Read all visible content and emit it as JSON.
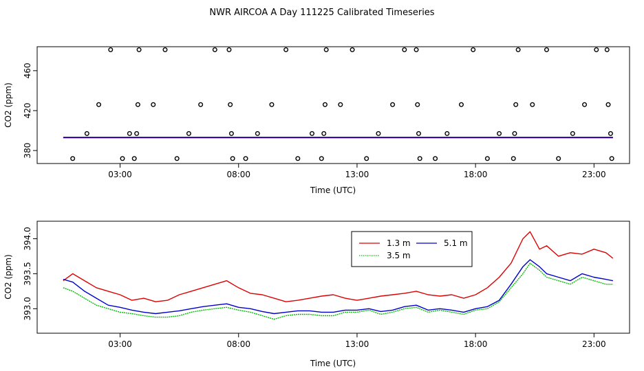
{
  "title": "NWR AIRCOA A  Day 111225  Calibrated Timeseries",
  "colors": {
    "s13": "#dd0000",
    "s35": "#00bb00",
    "s51": "#0000cc",
    "flask": "#000000"
  },
  "chart_data": [
    {
      "type": "scatter",
      "name": "top-panel",
      "xlabel": "Time (UTC)",
      "ylabel": "CO2 (ppm)",
      "xlim": [
        0,
        25
      ],
      "ylim": [
        367,
        484
      ],
      "xticks": [
        {
          "v": 3.5,
          "label": "03:00"
        },
        {
          "v": 8.5,
          "label": "08:00"
        },
        {
          "v": 13.5,
          "label": "13:00"
        },
        {
          "v": 18.5,
          "label": "18:00"
        },
        {
          "v": 23.5,
          "label": "23:00"
        }
      ],
      "yticks": [
        {
          "v": 380,
          "label": "380"
        },
        {
          "v": 420,
          "label": "420"
        },
        {
          "v": 460,
          "label": "460"
        }
      ],
      "baseline": {
        "x": [
          1.1,
          24.3
        ],
        "y": 393.2
      },
      "points": [
        [
          1.5,
          372
        ],
        [
          2.1,
          397
        ],
        [
          2.6,
          426
        ],
        [
          3.1,
          481
        ],
        [
          3.6,
          372
        ],
        [
          3.9,
          397
        ],
        [
          4.1,
          372
        ],
        [
          4.2,
          397
        ],
        [
          4.25,
          426
        ],
        [
          4.3,
          481
        ],
        [
          4.9,
          426
        ],
        [
          5.4,
          481
        ],
        [
          5.9,
          372
        ],
        [
          6.4,
          397
        ],
        [
          6.9,
          426
        ],
        [
          7.5,
          481
        ],
        [
          8.1,
          481
        ],
        [
          8.15,
          426
        ],
        [
          8.2,
          397
        ],
        [
          8.25,
          372
        ],
        [
          8.8,
          372
        ],
        [
          9.3,
          397
        ],
        [
          9.9,
          426
        ],
        [
          10.5,
          481
        ],
        [
          11.0,
          372
        ],
        [
          11.6,
          397
        ],
        [
          12.0,
          372
        ],
        [
          12.1,
          397
        ],
        [
          12.15,
          426
        ],
        [
          12.2,
          481
        ],
        [
          12.8,
          426
        ],
        [
          13.3,
          481
        ],
        [
          13.9,
          372
        ],
        [
          14.4,
          397
        ],
        [
          15.0,
          426
        ],
        [
          15.5,
          481
        ],
        [
          16.0,
          481
        ],
        [
          16.05,
          426
        ],
        [
          16.1,
          397
        ],
        [
          16.15,
          372
        ],
        [
          16.8,
          372
        ],
        [
          17.3,
          397
        ],
        [
          17.9,
          426
        ],
        [
          18.4,
          481
        ],
        [
          19.0,
          372
        ],
        [
          19.5,
          397
        ],
        [
          20.1,
          372
        ],
        [
          20.15,
          397
        ],
        [
          20.2,
          426
        ],
        [
          20.3,
          481
        ],
        [
          20.9,
          426
        ],
        [
          21.5,
          481
        ],
        [
          22.0,
          372
        ],
        [
          22.6,
          397
        ],
        [
          23.1,
          426
        ],
        [
          23.6,
          481
        ],
        [
          24.05,
          481
        ],
        [
          24.1,
          426
        ],
        [
          24.2,
          397
        ],
        [
          24.25,
          372
        ]
      ]
    },
    {
      "type": "line",
      "name": "bottom-panel",
      "xlabel": "Time (UTC)",
      "ylabel": "CO2 (ppm)",
      "xlim": [
        0,
        25
      ],
      "ylim": [
        392.65,
        394.25
      ],
      "xticks": [
        {
          "v": 3.5,
          "label": "03:00"
        },
        {
          "v": 8.5,
          "label": "08:00"
        },
        {
          "v": 13.5,
          "label": "13:00"
        },
        {
          "v": 18.5,
          "label": "18:00"
        },
        {
          "v": 23.5,
          "label": "23:00"
        }
      ],
      "yticks": [
        {
          "v": 393.0,
          "label": "393.0"
        },
        {
          "v": 393.5,
          "label": "393.5"
        },
        {
          "v": 394.0,
          "label": "394.0"
        }
      ],
      "legend": {
        "position": "top-center",
        "entries": [
          {
            "key": "s13",
            "label": "1.3 m"
          },
          {
            "key": "s51",
            "label": "5.1 m"
          },
          {
            "key": "s35",
            "label": "3.5 m"
          }
        ]
      },
      "series": [
        {
          "key": "s13",
          "name": "1.3 m",
          "points": [
            [
              1.1,
              393.4
            ],
            [
              1.5,
              393.5
            ],
            [
              2.0,
              393.4
            ],
            [
              2.5,
              393.3
            ],
            [
              3.0,
              393.25
            ],
            [
              3.5,
              393.2
            ],
            [
              4.0,
              393.12
            ],
            [
              4.5,
              393.15
            ],
            [
              5.0,
              393.1
            ],
            [
              5.5,
              393.12
            ],
            [
              6.0,
              393.2
            ],
            [
              6.5,
              393.25
            ],
            [
              7.0,
              393.3
            ],
            [
              7.5,
              393.35
            ],
            [
              8.0,
              393.4
            ],
            [
              8.5,
              393.3
            ],
            [
              9.0,
              393.22
            ],
            [
              9.5,
              393.2
            ],
            [
              10.0,
              393.15
            ],
            [
              10.5,
              393.1
            ],
            [
              11.0,
              393.12
            ],
            [
              11.5,
              393.15
            ],
            [
              12.0,
              393.18
            ],
            [
              12.5,
              393.2
            ],
            [
              13.0,
              393.15
            ],
            [
              13.5,
              393.12
            ],
            [
              14.0,
              393.15
            ],
            [
              14.5,
              393.18
            ],
            [
              15.0,
              393.2
            ],
            [
              15.5,
              393.22
            ],
            [
              16.0,
              393.25
            ],
            [
              16.5,
              393.2
            ],
            [
              17.0,
              393.18
            ],
            [
              17.5,
              393.2
            ],
            [
              18.0,
              393.15
            ],
            [
              18.5,
              393.2
            ],
            [
              19.0,
              393.3
            ],
            [
              19.5,
              393.45
            ],
            [
              20.0,
              393.65
            ],
            [
              20.5,
              394.0
            ],
            [
              20.8,
              394.1
            ],
            [
              21.2,
              393.85
            ],
            [
              21.5,
              393.9
            ],
            [
              22.0,
              393.75
            ],
            [
              22.5,
              393.8
            ],
            [
              23.0,
              393.78
            ],
            [
              23.5,
              393.85
            ],
            [
              24.0,
              393.8
            ],
            [
              24.3,
              393.72
            ]
          ]
        },
        {
          "key": "s35",
          "name": "3.5 m",
          "points": [
            [
              1.1,
              393.3
            ],
            [
              1.5,
              393.25
            ],
            [
              2.0,
              393.15
            ],
            [
              2.5,
              393.05
            ],
            [
              3.0,
              393.0
            ],
            [
              3.5,
              392.95
            ],
            [
              4.0,
              392.93
            ],
            [
              4.5,
              392.9
            ],
            [
              5.0,
              392.88
            ],
            [
              5.5,
              392.88
            ],
            [
              6.0,
              392.9
            ],
            [
              6.5,
              392.95
            ],
            [
              7.0,
              392.98
            ],
            [
              7.5,
              393.0
            ],
            [
              8.0,
              393.02
            ],
            [
              8.5,
              392.98
            ],
            [
              9.0,
              392.95
            ],
            [
              9.5,
              392.9
            ],
            [
              10.0,
              392.85
            ],
            [
              10.5,
              392.9
            ],
            [
              11.0,
              392.92
            ],
            [
              11.5,
              392.92
            ],
            [
              12.0,
              392.9
            ],
            [
              12.5,
              392.9
            ],
            [
              13.0,
              392.95
            ],
            [
              13.5,
              392.95
            ],
            [
              14.0,
              392.98
            ],
            [
              14.5,
              392.92
            ],
            [
              15.0,
              392.95
            ],
            [
              15.5,
              393.0
            ],
            [
              16.0,
              393.02
            ],
            [
              16.5,
              392.95
            ],
            [
              17.0,
              392.98
            ],
            [
              17.5,
              392.95
            ],
            [
              18.0,
              392.92
            ],
            [
              18.5,
              392.98
            ],
            [
              19.0,
              393.0
            ],
            [
              19.5,
              393.1
            ],
            [
              20.0,
              393.3
            ],
            [
              20.5,
              393.5
            ],
            [
              20.8,
              393.65
            ],
            [
              21.2,
              393.55
            ],
            [
              21.5,
              393.45
            ],
            [
              22.0,
              393.4
            ],
            [
              22.5,
              393.35
            ],
            [
              23.0,
              393.45
            ],
            [
              23.5,
              393.4
            ],
            [
              24.0,
              393.35
            ],
            [
              24.3,
              393.35
            ]
          ]
        },
        {
          "key": "s51",
          "name": "5.1 m",
          "points": [
            [
              1.1,
              393.42
            ],
            [
              1.5,
              393.38
            ],
            [
              2.0,
              393.25
            ],
            [
              2.5,
              393.15
            ],
            [
              3.0,
              393.05
            ],
            [
              3.5,
              393.02
            ],
            [
              4.0,
              392.98
            ],
            [
              4.5,
              392.95
            ],
            [
              5.0,
              392.93
            ],
            [
              5.5,
              392.95
            ],
            [
              6.0,
              392.97
            ],
            [
              6.5,
              393.0
            ],
            [
              7.0,
              393.03
            ],
            [
              7.5,
              393.05
            ],
            [
              8.0,
              393.07
            ],
            [
              8.5,
              393.02
            ],
            [
              9.0,
              393.0
            ],
            [
              9.5,
              392.96
            ],
            [
              10.0,
              392.93
            ],
            [
              10.5,
              392.95
            ],
            [
              11.0,
              392.97
            ],
            [
              11.5,
              392.97
            ],
            [
              12.0,
              392.95
            ],
            [
              12.5,
              392.95
            ],
            [
              13.0,
              392.98
            ],
            [
              13.5,
              392.98
            ],
            [
              14.0,
              393.0
            ],
            [
              14.5,
              392.96
            ],
            [
              15.0,
              392.98
            ],
            [
              15.5,
              393.03
            ],
            [
              16.0,
              393.05
            ],
            [
              16.5,
              392.98
            ],
            [
              17.0,
              393.0
            ],
            [
              17.5,
              392.98
            ],
            [
              18.0,
              392.95
            ],
            [
              18.5,
              393.0
            ],
            [
              19.0,
              393.03
            ],
            [
              19.5,
              393.12
            ],
            [
              20.0,
              393.35
            ],
            [
              20.5,
              393.6
            ],
            [
              20.8,
              393.7
            ],
            [
              21.2,
              393.6
            ],
            [
              21.5,
              393.5
            ],
            [
              22.0,
              393.45
            ],
            [
              22.5,
              393.4
            ],
            [
              23.0,
              393.5
            ],
            [
              23.5,
              393.45
            ],
            [
              24.0,
              393.42
            ],
            [
              24.3,
              393.4
            ]
          ]
        }
      ]
    }
  ]
}
